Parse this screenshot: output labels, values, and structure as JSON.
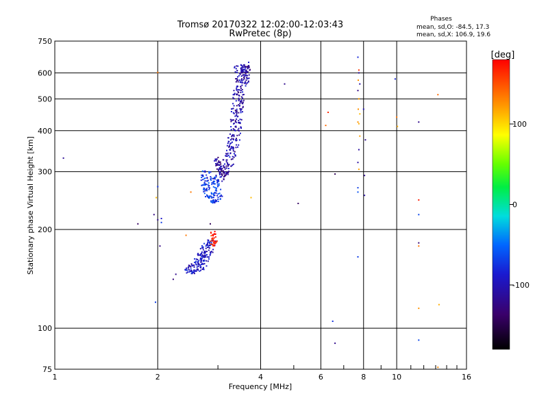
{
  "chart_data": {
    "type": "scatter",
    "title": "Tromsø 20170322 12:02:00-12:03:43",
    "subtitle": "RwPretec (8p)",
    "stats_title": "Phases",
    "stats_o": "mean, sd,O: -84.5, 17.3",
    "stats_x": "mean, sd,X: 106.9, 19.6",
    "xlabel": "Frequency [MHz]",
    "ylabel": "Stationary phase Virtual Height [km]",
    "x_scale": "log",
    "y_scale": "log",
    "xlim": [
      1,
      16
    ],
    "ylim": [
      75,
      750
    ],
    "grid": true,
    "x_ticks": [
      {
        "v": 1,
        "label": "1"
      },
      {
        "v": 2,
        "label": "2"
      },
      {
        "v": 4,
        "label": "4"
      },
      {
        "v": 6,
        "label": "6"
      },
      {
        "v": 8,
        "label": "8"
      },
      {
        "v": 10,
        "label": "10"
      },
      {
        "v": 16,
        "label": "16"
      }
    ],
    "x_gridlines": [
      2,
      4,
      6,
      8,
      10
    ],
    "x_minor_ticks": [
      3,
      5,
      7,
      9,
      11,
      12,
      13,
      14,
      15
    ],
    "y_ticks": [
      {
        "v": 75,
        "label": "75"
      },
      {
        "v": 100,
        "label": "100"
      },
      {
        "v": 200,
        "label": "200"
      },
      {
        "v": 300,
        "label": "300"
      },
      {
        "v": 400,
        "label": "400"
      },
      {
        "v": 500,
        "label": "500"
      },
      {
        "v": 600,
        "label": "600"
      },
      {
        "v": 750,
        "label": "750"
      }
    ],
    "y_gridlines": [
      100,
      200,
      300,
      400,
      500,
      600
    ],
    "colorbar": {
      "label": "[deg]",
      "range": [
        -180,
        180
      ],
      "ticks": [
        {
          "v": 100,
          "label": "100"
        },
        {
          "v": 0,
          "label": "0"
        },
        {
          "v": -100,
          "label": "-100"
        }
      ]
    },
    "series": [
      {
        "type": "trace",
        "phase_deg": -105,
        "spread": 0.04,
        "points": [
          [
            3.48,
            640
          ],
          [
            3.5,
            615
          ],
          [
            3.52,
            590
          ],
          [
            3.5,
            565
          ],
          [
            3.48,
            540
          ],
          [
            3.46,
            515
          ],
          [
            3.44,
            490
          ],
          [
            3.42,
            465
          ],
          [
            3.4,
            440
          ],
          [
            3.38,
            415
          ],
          [
            3.36,
            395
          ],
          [
            3.34,
            375
          ],
          [
            3.31,
            355
          ],
          [
            3.27,
            338
          ],
          [
            3.22,
            322
          ],
          [
            3.16,
            308
          ],
          [
            3.1,
            297
          ],
          [
            3.03,
            288
          ],
          [
            3.0,
            282
          ]
        ]
      },
      {
        "type": "trace",
        "phase_deg": -110,
        "spread": 0.03,
        "points": [
          [
            3.6,
            648
          ],
          [
            3.62,
            620
          ],
          [
            3.61,
            590
          ],
          [
            3.59,
            555
          ]
        ]
      },
      {
        "type": "trace",
        "phase_deg": -115,
        "spread": 0.02,
        "points": [
          [
            2.98,
            330
          ],
          [
            3.0,
            318
          ],
          [
            3.04,
            306
          ],
          [
            3.09,
            298
          ],
          [
            3.14,
            296
          ],
          [
            3.18,
            300
          ]
        ]
      },
      {
        "type": "trace",
        "phase_deg": -72,
        "spread": 0.03,
        "points": [
          [
            2.78,
            300
          ],
          [
            2.76,
            285
          ],
          [
            2.77,
            270
          ],
          [
            2.8,
            258
          ],
          [
            2.84,
            248
          ],
          [
            2.9,
            242
          ],
          [
            2.95,
            245
          ],
          [
            3.0,
            252
          ],
          [
            2.92,
            290
          ]
        ]
      },
      {
        "type": "trace",
        "phase_deg": -92,
        "spread": 0.03,
        "points": [
          [
            2.78,
            182
          ],
          [
            2.75,
            175
          ],
          [
            2.7,
            168
          ],
          [
            2.64,
            162
          ],
          [
            2.58,
            158
          ],
          [
            2.5,
            154
          ],
          [
            2.46,
            150
          ],
          [
            2.52,
            148
          ],
          [
            2.6,
            148
          ],
          [
            2.66,
            152
          ],
          [
            2.72,
            158
          ],
          [
            2.78,
            165
          ],
          [
            2.84,
            174
          ],
          [
            2.88,
            186
          ]
        ]
      },
      {
        "type": "trace",
        "phase_deg": 170,
        "spread": 0.02,
        "points": [
          [
            2.88,
            178
          ],
          [
            2.92,
            184
          ],
          [
            2.94,
            190
          ],
          [
            2.9,
            196
          ]
        ]
      },
      {
        "type": "points",
        "points": [
          [
            1.06,
            330,
            -115
          ],
          [
            1.75,
            208,
            -140
          ],
          [
            1.95,
            222,
            -125
          ],
          [
            2.0,
            214,
            -120
          ],
          [
            2.05,
            216,
            -90
          ],
          [
            2.05,
            210,
            -70
          ],
          [
            2.0,
            270,
            -75
          ],
          [
            2.0,
            602,
            135
          ],
          [
            1.98,
            250,
            110
          ],
          [
            1.97,
            120,
            -70
          ],
          [
            2.03,
            178,
            -125
          ],
          [
            2.22,
            141,
            -130
          ],
          [
            2.26,
            146,
            -120
          ],
          [
            2.42,
            192,
            135
          ],
          [
            2.5,
            260,
            135
          ],
          [
            2.85,
            208,
            -145
          ],
          [
            3.75,
            250,
            110
          ],
          [
            4.7,
            555,
            -120
          ],
          [
            5.15,
            240,
            -140
          ],
          [
            6.3,
            455,
            165
          ],
          [
            6.2,
            415,
            140
          ],
          [
            6.6,
            295,
            -145
          ],
          [
            6.5,
            105,
            -75
          ],
          [
            6.6,
            90,
            -120
          ],
          [
            7.7,
            670,
            -80
          ],
          [
            7.75,
            612,
            160
          ],
          [
            7.75,
            600,
            -110
          ],
          [
            7.72,
            570,
            125
          ],
          [
            7.8,
            555,
            -110
          ],
          [
            7.7,
            530,
            -125
          ],
          [
            7.75,
            500,
            120
          ],
          [
            7.72,
            465,
            125
          ],
          [
            7.8,
            450,
            110
          ],
          [
            8.0,
            465,
            -100
          ],
          [
            7.7,
            425,
            125
          ],
          [
            7.75,
            420,
            115
          ],
          [
            7.8,
            385,
            120
          ],
          [
            7.75,
            350,
            -110
          ],
          [
            8.1,
            375,
            -120
          ],
          [
            7.7,
            320,
            -110
          ],
          [
            7.75,
            305,
            120
          ],
          [
            8.05,
            292,
            -120
          ],
          [
            7.7,
            268,
            -70
          ],
          [
            7.7,
            260,
            -60
          ],
          [
            8.05,
            254,
            -110
          ],
          [
            7.7,
            165,
            -70
          ],
          [
            9.9,
            575,
            -80
          ],
          [
            10.0,
            440,
            135
          ],
          [
            10.05,
            412,
            115
          ],
          [
            11.6,
            425,
            -120
          ],
          [
            11.6,
            246,
            170
          ],
          [
            11.6,
            222,
            -65
          ],
          [
            11.6,
            182,
            -130
          ],
          [
            11.6,
            178,
            135
          ],
          [
            11.6,
            115,
            125
          ],
          [
            11.6,
            92,
            -65
          ],
          [
            13.2,
            515,
            140
          ],
          [
            13.3,
            118,
            115
          ],
          [
            13.2,
            76,
            130
          ]
        ]
      }
    ]
  }
}
